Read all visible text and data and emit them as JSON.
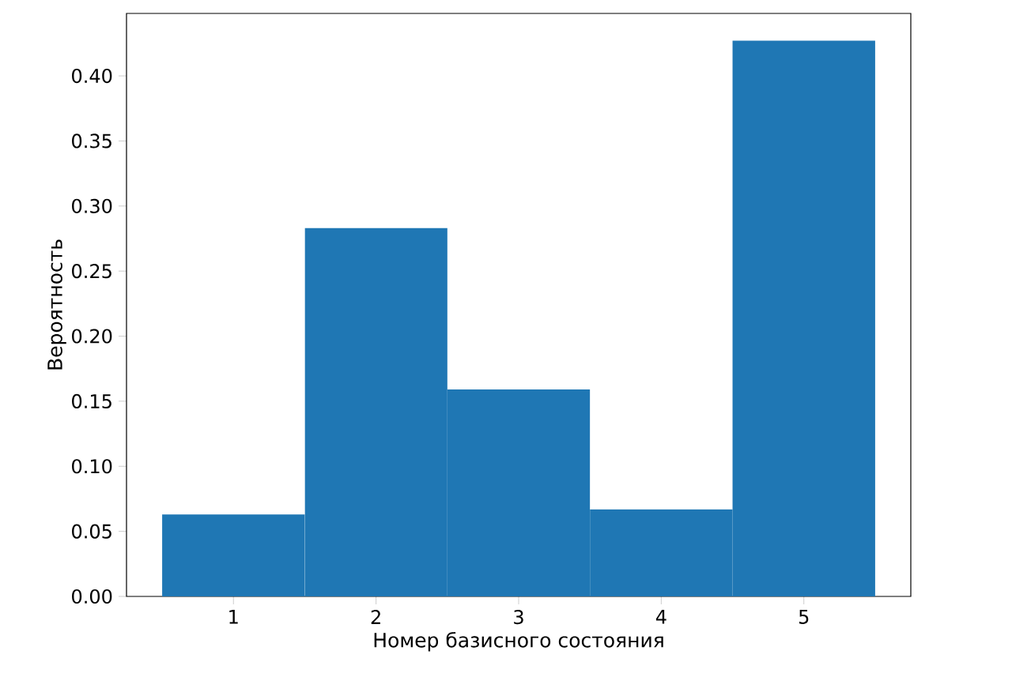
{
  "chart_data": {
    "type": "histogram",
    "xlabel": "Номер базисного состояния",
    "ylabel": "Вероятность",
    "bins": [
      0.5,
      1.5,
      2.5,
      3.5,
      4.5,
      5.5
    ],
    "values": [
      0.063,
      0.283,
      0.159,
      0.067,
      0.427
    ],
    "color": "#1f77b4",
    "xlim": [
      0.25,
      5.75
    ],
    "ylim": [
      0,
      0.448
    ],
    "xticks": [
      1,
      2,
      3,
      4,
      5
    ],
    "yticks": [
      {
        "value": 0,
        "label": "0.00"
      },
      {
        "value": 0.05,
        "label": "0.05"
      },
      {
        "value": 0.1,
        "label": "0.10"
      },
      {
        "value": 0.15,
        "label": "0.15"
      },
      {
        "value": 0.2,
        "label": "0.20"
      },
      {
        "value": 0.25,
        "label": "0.25"
      },
      {
        "value": 0.3,
        "label": "0.30"
      },
      {
        "value": 0.35,
        "label": "0.35"
      },
      {
        "value": 0.4,
        "label": "0.40"
      }
    ],
    "grid": false
  }
}
